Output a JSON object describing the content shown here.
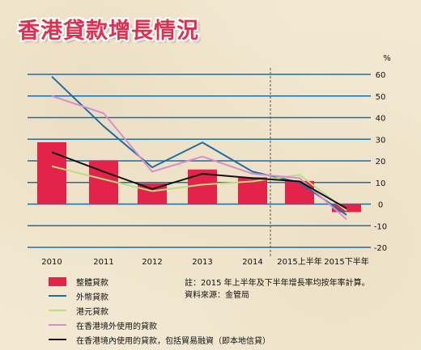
{
  "title": "香港貸款增長情況",
  "notes": {
    "line1": "註：2015 年上半年及下半年增長率均按年率計算。",
    "line2": "資料來源：金管局"
  },
  "colors": {
    "total": "#e4234b",
    "foreign_currency": "#1d6fa3",
    "hkd": "#b9dd7f",
    "outside_hk": "#d88fc7",
    "inside_hk": "#111111",
    "grid": "#1d6fa3",
    "title": "#e0304f"
  },
  "chart_data": {
    "type": "bar",
    "categories": [
      "2010",
      "2011",
      "2012",
      "2013",
      "2014",
      "2015上半年",
      "2015下半年"
    ],
    "ylabel": "%",
    "ylim": [
      -20,
      60
    ],
    "yticks": [
      60,
      50,
      40,
      30,
      20,
      10,
      0,
      -10,
      -20
    ],
    "grid": true,
    "legend_position": "bottom-left",
    "series": [
      {
        "name": "整體貸款",
        "kind": "bar",
        "color_key": "total",
        "values": [
          28.6,
          20.2,
          9.6,
          16.0,
          12.4,
          10.7,
          -3.7
        ]
      },
      {
        "name": "外幣貸款",
        "kind": "line",
        "color_key": "foreign_currency",
        "values": [
          59.0,
          36.0,
          17.0,
          28.5,
          15.0,
          10.0,
          -5.0
        ]
      },
      {
        "name": "港元貸款",
        "kind": "line",
        "color_key": "hkd",
        "values": [
          17.5,
          11.5,
          6.0,
          9.0,
          10.5,
          13.5,
          -3.0
        ]
      },
      {
        "name": "在香港境外使用的貸款",
        "kind": "line",
        "color_key": "outside_hk",
        "values": [
          50.0,
          42.0,
          15.0,
          22.0,
          14.0,
          12.0,
          -7.0
        ]
      },
      {
        "name": "在香港境內使用的貸款，包括貿易融資（即本地信貸）",
        "kind": "line",
        "color_key": "inside_hk",
        "values": [
          24.0,
          15.0,
          7.0,
          14.0,
          12.0,
          10.5,
          -2.0
        ]
      }
    ]
  }
}
